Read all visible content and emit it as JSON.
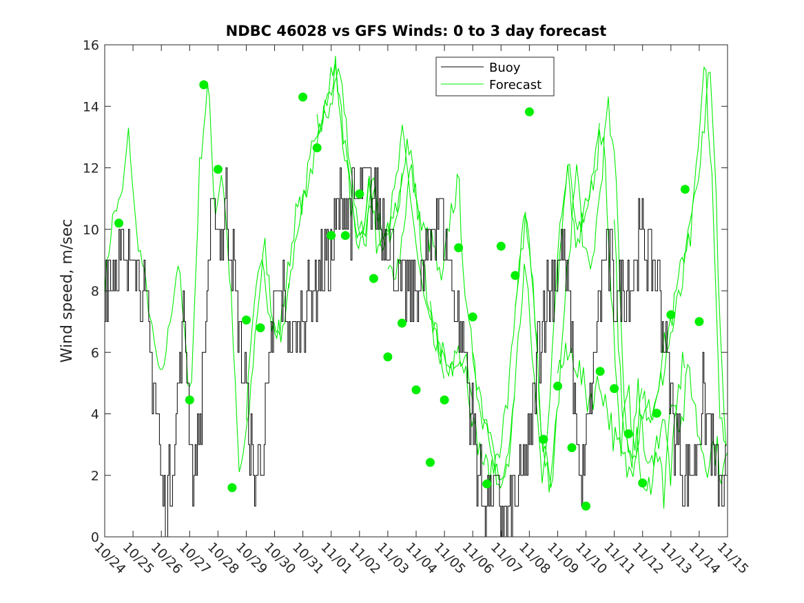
{
  "chart_data": {
    "type": "line",
    "title": "NDBC 46028 vs GFS Winds: 0 to 3 day forecast",
    "xlabel": "",
    "ylabel": "Wind speed, m/sec",
    "xlim": [
      0,
      22
    ],
    "ylim": [
      0,
      16
    ],
    "x_tick_labels": [
      "10/24",
      "10/25",
      "10/26",
      "10/27",
      "10/28",
      "10/29",
      "10/30",
      "10/31",
      "11/01",
      "11/02",
      "11/03",
      "11/04",
      "11/05",
      "11/06",
      "11/07",
      "11/08",
      "11/09",
      "11/10",
      "11/11",
      "11/12",
      "11/13",
      "11/14",
      "11/15"
    ],
    "y_ticks": [
      0,
      2,
      4,
      6,
      8,
      10,
      12,
      14,
      16
    ],
    "legend": {
      "position": "top-center",
      "entries": [
        {
          "label": "Buoy",
          "color": "#000000"
        },
        {
          "label": "Forecast",
          "color": "#00ee00"
        }
      ]
    },
    "colors": {
      "buoy": "#000000",
      "forecast": "#00ee00",
      "markers": "#00ee00"
    },
    "buoy_anchors": [
      [
        0.0,
        8.5
      ],
      [
        0.3,
        8.8
      ],
      [
        0.5,
        9.0
      ],
      [
        0.8,
        8.5
      ],
      [
        1.0,
        10.5
      ],
      [
        1.2,
        8.5
      ],
      [
        1.5,
        7.0
      ],
      [
        1.8,
        4.5
      ],
      [
        2.0,
        2.0
      ],
      [
        2.2,
        1.0
      ],
      [
        2.5,
        3.5
      ],
      [
        2.8,
        7.5
      ],
      [
        3.1,
        2.0
      ],
      [
        3.3,
        3.0
      ],
      [
        3.5,
        6.0
      ],
      [
        3.7,
        9.5
      ],
      [
        3.9,
        10.8
      ],
      [
        4.1,
        9.5
      ],
      [
        4.3,
        11.0
      ],
      [
        4.5,
        9.0
      ],
      [
        4.7,
        7.0
      ],
      [
        5.0,
        4.5
      ],
      [
        5.3,
        1.5
      ],
      [
        5.7,
        4.0
      ],
      [
        6.0,
        7.5
      ],
      [
        6.3,
        8.0
      ],
      [
        6.5,
        6.5
      ],
      [
        6.8,
        6.5
      ],
      [
        7.2,
        8.0
      ],
      [
        7.5,
        8.5
      ],
      [
        8.0,
        9.0
      ],
      [
        8.3,
        10.8
      ],
      [
        8.7,
        10.5
      ],
      [
        9.0,
        11.0
      ],
      [
        9.3,
        11.5
      ],
      [
        9.6,
        11.0
      ],
      [
        9.9,
        10.0
      ],
      [
        10.2,
        9.0
      ],
      [
        10.5,
        8.0
      ],
      [
        10.8,
        8.0
      ],
      [
        11.2,
        8.5
      ],
      [
        11.5,
        9.5
      ],
      [
        11.8,
        11.0
      ],
      [
        12.1,
        9.5
      ],
      [
        12.4,
        7.5
      ],
      [
        12.8,
        5.5
      ],
      [
        13.0,
        3.5
      ],
      [
        13.2,
        2.0
      ],
      [
        13.5,
        1.0
      ],
      [
        13.8,
        1.5
      ],
      [
        14.2,
        0.5
      ],
      [
        14.6,
        1.5
      ],
      [
        15.0,
        3.0
      ],
      [
        15.3,
        6.0
      ],
      [
        15.6,
        8.0
      ],
      [
        15.9,
        8.5
      ],
      [
        16.2,
        9.5
      ],
      [
        16.5,
        6.0
      ],
      [
        16.8,
        1.5
      ],
      [
        17.1,
        3.5
      ],
      [
        17.4,
        7.0
      ],
      [
        17.7,
        9.5
      ],
      [
        18.0,
        8.0
      ],
      [
        18.3,
        8.0
      ],
      [
        18.6,
        8.5
      ],
      [
        19.0,
        10.0
      ],
      [
        19.3,
        9.0
      ],
      [
        19.6,
        8.0
      ],
      [
        19.9,
        5.0
      ],
      [
        20.2,
        3.0
      ],
      [
        20.5,
        2.0
      ],
      [
        20.8,
        2.5
      ],
      [
        21.1,
        4.5
      ],
      [
        21.4,
        3.5
      ],
      [
        21.7,
        1.5
      ],
      [
        22.0,
        2.0
      ]
    ],
    "forecast_anchors": [
      [
        0.0,
        8.2
      ],
      [
        0.3,
        10.5
      ],
      [
        0.6,
        11.0
      ],
      [
        0.85,
        13.2
      ],
      [
        1.1,
        10.0
      ],
      [
        1.4,
        8.5
      ],
      [
        1.7,
        6.5
      ],
      [
        2.0,
        5.0
      ],
      [
        2.3,
        7.0
      ],
      [
        2.6,
        9.0
      ],
      [
        3.0,
        4.5
      ],
      [
        3.3,
        12.0
      ],
      [
        3.6,
        14.8
      ],
      [
        3.85,
        10.5
      ],
      [
        4.1,
        12.0
      ],
      [
        4.4,
        8.0
      ],
      [
        4.7,
        2.0
      ],
      [
        5.0,
        3.5
      ],
      [
        5.3,
        7.0
      ],
      [
        5.6,
        9.5
      ],
      [
        5.9,
        7.0
      ],
      [
        6.2,
        6.5
      ],
      [
        6.5,
        8.5
      ],
      [
        6.8,
        10.5
      ],
      [
        7.1,
        11.0
      ],
      [
        7.4,
        13.0
      ],
      [
        7.7,
        13.5
      ],
      [
        8.0,
        14.5
      ],
      [
        8.2,
        15.3
      ],
      [
        8.5,
        13.0
      ],
      [
        8.8,
        10.5
      ],
      [
        9.1,
        9.5
      ],
      [
        9.4,
        11.5
      ],
      [
        9.7,
        9.5
      ],
      [
        10.0,
        10.0
      ],
      [
        10.3,
        11.0
      ],
      [
        10.6,
        13.0
      ],
      [
        10.9,
        11.0
      ],
      [
        11.2,
        8.5
      ],
      [
        11.5,
        7.0
      ],
      [
        11.8,
        6.0
      ],
      [
        12.1,
        5.5
      ],
      [
        12.4,
        6.0
      ],
      [
        12.7,
        5.5
      ],
      [
        13.0,
        3.5
      ],
      [
        13.3,
        2.5
      ],
      [
        13.6,
        2.0
      ],
      [
        13.9,
        3.0
      ],
      [
        14.2,
        4.5
      ],
      [
        14.5,
        8.0
      ],
      [
        14.8,
        10.5
      ],
      [
        15.1,
        7.5
      ],
      [
        15.4,
        3.0
      ],
      [
        15.7,
        1.5
      ],
      [
        16.0,
        5.0
      ],
      [
        16.3,
        9.0
      ],
      [
        16.6,
        12.0
      ],
      [
        16.9,
        9.0
      ],
      [
        17.1,
        8.5
      ],
      [
        17.4,
        11.0
      ],
      [
        17.7,
        14.0
      ],
      [
        18.0,
        11.5
      ],
      [
        18.3,
        4.0
      ],
      [
        18.6,
        2.0
      ],
      [
        18.9,
        5.0
      ],
      [
        19.2,
        2.5
      ],
      [
        19.5,
        3.0
      ],
      [
        19.8,
        1.5
      ],
      [
        20.1,
        5.0
      ],
      [
        20.4,
        3.5
      ],
      [
        20.7,
        5.5
      ],
      [
        21.0,
        3.5
      ],
      [
        21.3,
        2.5
      ],
      [
        21.6,
        3.0
      ],
      [
        21.9,
        2.0
      ],
      [
        22.0,
        2.5
      ]
    ],
    "forecast_anchors_2": [
      [
        10.0,
        8.5
      ],
      [
        10.4,
        9.0
      ],
      [
        10.8,
        12.0
      ],
      [
        11.2,
        10.0
      ],
      [
        11.6,
        9.5
      ],
      [
        11.9,
        8.0
      ],
      [
        12.2,
        10.5
      ],
      [
        12.5,
        11.5
      ],
      [
        12.8,
        7.0
      ],
      [
        13.1,
        5.5
      ],
      [
        13.4,
        4.0
      ],
      [
        13.7,
        3.0
      ],
      [
        14.0,
        1.5
      ],
      [
        14.3,
        2.5
      ],
      [
        14.6,
        5.5
      ],
      [
        14.9,
        9.0
      ],
      [
        15.2,
        5.5
      ],
      [
        15.5,
        2.0
      ],
      [
        15.8,
        4.5
      ],
      [
        16.1,
        10.0
      ],
      [
        16.4,
        12.3
      ],
      [
        16.7,
        9.5
      ],
      [
        17.0,
        10.5
      ],
      [
        17.3,
        12.0
      ],
      [
        17.6,
        13.5
      ],
      [
        17.9,
        8.0
      ],
      [
        18.2,
        3.0
      ],
      [
        18.5,
        4.5
      ],
      [
        18.8,
        3.0
      ],
      [
        19.1,
        1.0
      ],
      [
        19.4,
        2.5
      ],
      [
        19.7,
        4.0
      ],
      [
        20.0,
        2.0
      ],
      [
        20.3,
        5.0
      ],
      [
        20.6,
        6.5
      ],
      [
        20.9,
        6.0
      ],
      [
        21.2,
        7.0
      ],
      [
        21.5,
        4.5
      ],
      [
        21.8,
        5.5
      ],
      [
        22.0,
        4.0
      ]
    ],
    "forecast_anchors_3": [
      [
        16.0,
        5.5
      ],
      [
        16.5,
        6.0
      ],
      [
        17.0,
        4.5
      ],
      [
        17.5,
        5.0
      ],
      [
        18.0,
        3.0
      ],
      [
        18.5,
        2.0
      ],
      [
        19.0,
        4.5
      ],
      [
        19.4,
        4.0
      ],
      [
        19.8,
        6.0
      ],
      [
        20.2,
        7.5
      ],
      [
        20.6,
        9.5
      ],
      [
        21.0,
        12.0
      ],
      [
        21.3,
        15.5
      ],
      [
        21.55,
        11.0
      ],
      [
        21.8,
        4.0
      ],
      [
        22.0,
        3.0
      ]
    ],
    "markers": [
      [
        0.5,
        10.2
      ],
      [
        3.0,
        4.45
      ],
      [
        3.5,
        14.7
      ],
      [
        4.0,
        11.95
      ],
      [
        4.5,
        1.6
      ],
      [
        5.0,
        7.05
      ],
      [
        5.5,
        6.8
      ],
      [
        7.0,
        14.3
      ],
      [
        7.5,
        12.65
      ],
      [
        8.0,
        9.8
      ],
      [
        8.5,
        9.8
      ],
      [
        9.0,
        11.15
      ],
      [
        9.5,
        8.4
      ],
      [
        10.0,
        5.85
      ],
      [
        10.5,
        6.95
      ],
      [
        11.0,
        4.78
      ],
      [
        11.5,
        2.42
      ],
      [
        12.0,
        4.45
      ],
      [
        12.5,
        9.4
      ],
      [
        13.0,
        7.15
      ],
      [
        13.5,
        1.72
      ],
      [
        14.0,
        9.45
      ],
      [
        14.5,
        8.5
      ],
      [
        15.0,
        13.82
      ],
      [
        15.5,
        3.17
      ],
      [
        16.0,
        4.9
      ],
      [
        16.5,
        2.9
      ],
      [
        17.0,
        1.0
      ],
      [
        17.5,
        5.38
      ],
      [
        18.0,
        4.82
      ],
      [
        18.5,
        3.35
      ],
      [
        19.0,
        1.75
      ],
      [
        19.5,
        4.02
      ],
      [
        20.0,
        7.22
      ],
      [
        20.5,
        11.3
      ],
      [
        21.0,
        7.0
      ]
    ]
  }
}
